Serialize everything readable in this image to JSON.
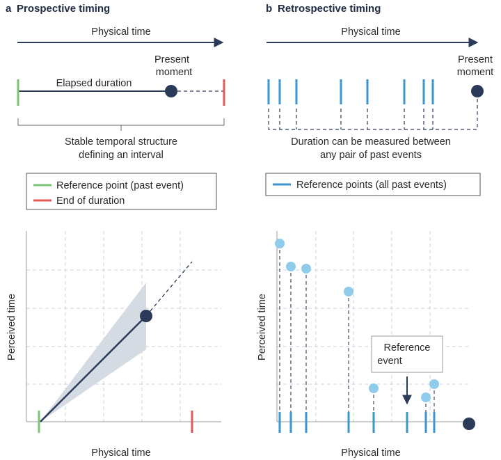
{
  "panel_a": {
    "letter": "a",
    "title": "Prospective timing",
    "physical_time": "Physical time",
    "present_moment": [
      "Present",
      "moment"
    ],
    "elapsed_duration": "Elapsed duration",
    "interval_text": [
      "Stable temporal structure",
      "defining an interval"
    ],
    "legend": [
      {
        "label": "Reference point (past event)",
        "color": "#7cc576"
      },
      {
        "label": "End of duration",
        "color": "#e05a5a"
      }
    ],
    "plot_ylabel": "Perceived time",
    "plot_xlabel": "Physical time"
  },
  "panel_b": {
    "letter": "b",
    "title": "Retrospective timing",
    "physical_time": "Physical time",
    "present_moment": [
      "Present",
      "moment"
    ],
    "pair_text": [
      "Duration can be measured between",
      "any pair of past events"
    ],
    "legend": [
      {
        "label": "Reference points (all past events)",
        "color": "#3a96cc"
      }
    ],
    "plot_ylabel": "Perceived time",
    "plot_xlabel": "Physical time",
    "reference_event": [
      "Reference",
      "event"
    ]
  },
  "colors": {
    "navy": "#2c3a5a",
    "blue": "#3a96cc",
    "light_blue": "#8fcbeb",
    "green": "#7cc576",
    "red": "#e05a5a",
    "grid": "#c9d3de",
    "band": "#d5dbe3"
  }
}
